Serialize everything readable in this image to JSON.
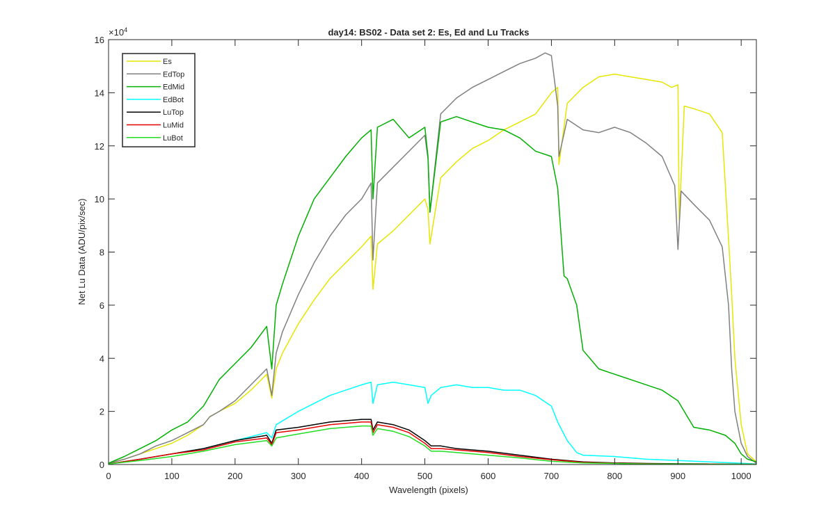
{
  "chart_data": {
    "type": "line",
    "title": "day14: BS02 - Data set 2: Es, Ed and Lu Tracks",
    "xlabel": "Wavelength (pixels)",
    "ylabel": "Net Lu Data (ADU/pix/sec)",
    "y_exponent_label": "×10",
    "y_exponent_power": "4",
    "xlim": [
      0,
      1024
    ],
    "ylim": [
      0,
      16
    ],
    "y_scale_note": "values in units of 1e4",
    "xticks": [
      0,
      100,
      200,
      300,
      400,
      500,
      600,
      700,
      800,
      900,
      1000
    ],
    "xtick_labels": [
      "0",
      "100",
      "200",
      "300",
      "400",
      "500",
      "600",
      "700",
      "800",
      "900",
      "1000"
    ],
    "yticks": [
      0,
      2,
      4,
      6,
      8,
      10,
      12,
      14,
      16
    ],
    "ytick_labels": [
      "0",
      "2",
      "4",
      "6",
      "8",
      "10",
      "12",
      "14",
      "16"
    ],
    "grid": false,
    "legend_position": "top-left",
    "series": [
      {
        "name": "Es",
        "color": "#e6e600",
        "x": [
          0,
          25,
          50,
          75,
          100,
          125,
          150,
          160,
          175,
          200,
          225,
          250,
          258,
          265,
          275,
          300,
          325,
          350,
          375,
          400,
          415,
          418,
          425,
          450,
          475,
          500,
          505,
          508,
          525,
          550,
          575,
          600,
          625,
          650,
          675,
          700,
          710,
          712,
          725,
          750,
          775,
          800,
          825,
          850,
          875,
          890,
          900,
          902,
          910,
          925,
          950,
          970,
          980,
          985,
          990,
          1000,
          1010,
          1024
        ],
        "y": [
          0.05,
          0.2,
          0.4,
          0.6,
          0.8,
          1.1,
          1.5,
          1.8,
          2.0,
          2.3,
          2.8,
          3.4,
          2.5,
          3.6,
          4.2,
          5.3,
          6.2,
          7.0,
          7.6,
          8.2,
          8.6,
          6.6,
          8.3,
          8.8,
          9.4,
          10.0,
          9.6,
          8.3,
          10.8,
          11.4,
          11.9,
          12.2,
          12.6,
          12.9,
          13.2,
          14.0,
          14.2,
          11.3,
          13.6,
          14.2,
          14.6,
          14.7,
          14.6,
          14.5,
          14.4,
          14.2,
          14.3,
          9.2,
          13.5,
          13.4,
          13.2,
          12.5,
          8.5,
          6.4,
          4.0,
          1.5,
          0.4,
          0.1
        ]
      },
      {
        "name": "EdTop",
        "color": "#808080",
        "x": [
          0,
          25,
          50,
          75,
          100,
          125,
          150,
          160,
          175,
          200,
          225,
          250,
          258,
          265,
          275,
          300,
          325,
          350,
          375,
          400,
          415,
          418,
          425,
          450,
          475,
          500,
          505,
          508,
          525,
          550,
          575,
          600,
          625,
          650,
          675,
          690,
          700,
          710,
          712,
          725,
          750,
          775,
          800,
          825,
          850,
          875,
          895,
          900,
          905,
          925,
          950,
          970,
          980,
          985,
          990,
          1000,
          1010,
          1024
        ],
        "y": [
          0.05,
          0.2,
          0.4,
          0.7,
          0.9,
          1.2,
          1.5,
          1.8,
          2.0,
          2.4,
          3.0,
          3.6,
          2.6,
          4.2,
          5.0,
          6.4,
          7.6,
          8.6,
          9.4,
          10.0,
          10.6,
          7.7,
          10.6,
          11.2,
          11.8,
          12.4,
          11.5,
          9.5,
          13.2,
          13.8,
          14.2,
          14.5,
          14.8,
          15.1,
          15.3,
          15.5,
          15.4,
          13.5,
          11.6,
          13.0,
          12.6,
          12.5,
          12.7,
          12.5,
          12.1,
          11.6,
          10.5,
          8.1,
          10.3,
          9.8,
          9.2,
          8.2,
          6.0,
          3.6,
          2.0,
          0.8,
          0.3,
          0.05
        ]
      },
      {
        "name": "EdMid",
        "color": "#00b000",
        "x": [
          0,
          25,
          50,
          75,
          100,
          125,
          150,
          160,
          175,
          200,
          225,
          250,
          258,
          265,
          275,
          300,
          325,
          350,
          375,
          400,
          415,
          418,
          425,
          450,
          475,
          500,
          505,
          508,
          525,
          550,
          575,
          600,
          625,
          650,
          675,
          700,
          710,
          720,
          725,
          740,
          750,
          775,
          800,
          825,
          850,
          875,
          900,
          925,
          950,
          975,
          990,
          1000,
          1010,
          1024
        ],
        "y": [
          0.05,
          0.3,
          0.6,
          0.9,
          1.3,
          1.6,
          2.2,
          2.6,
          3.2,
          3.8,
          4.4,
          5.2,
          3.6,
          6.0,
          6.8,
          8.6,
          10.0,
          10.8,
          11.6,
          12.3,
          12.6,
          10.0,
          12.7,
          13.0,
          12.3,
          12.7,
          11.6,
          9.5,
          12.9,
          13.1,
          12.9,
          12.7,
          12.6,
          12.3,
          11.8,
          11.6,
          10.4,
          7.1,
          7.0,
          6.0,
          4.3,
          3.6,
          3.4,
          3.2,
          3.0,
          2.8,
          2.4,
          1.4,
          1.3,
          1.1,
          0.8,
          0.4,
          0.2,
          0.1
        ]
      },
      {
        "name": "EdBot",
        "color": "#00ffff",
        "x": [
          0,
          50,
          100,
          150,
          200,
          250,
          258,
          265,
          300,
          350,
          400,
          415,
          418,
          425,
          450,
          475,
          500,
          505,
          510,
          525,
          550,
          575,
          600,
          625,
          650,
          675,
          700,
          710,
          725,
          740,
          750,
          800,
          850,
          900,
          950,
          1000,
          1024
        ],
        "y": [
          0.02,
          0.2,
          0.4,
          0.6,
          0.9,
          1.2,
          1.0,
          1.5,
          2.0,
          2.6,
          3.0,
          3.1,
          2.3,
          3.0,
          3.1,
          3.0,
          2.9,
          2.3,
          2.6,
          2.9,
          3.0,
          2.9,
          2.9,
          2.8,
          2.8,
          2.6,
          2.2,
          1.6,
          0.9,
          0.45,
          0.35,
          0.3,
          0.2,
          0.15,
          0.1,
          0.05,
          0.02
        ]
      },
      {
        "name": "LuTop",
        "color": "#000000",
        "x": [
          0,
          50,
          100,
          150,
          200,
          250,
          258,
          265,
          300,
          350,
          400,
          415,
          418,
          425,
          450,
          475,
          500,
          510,
          525,
          550,
          600,
          650,
          700,
          750,
          800,
          850,
          900,
          950,
          1000,
          1024
        ],
        "y": [
          0.02,
          0.2,
          0.4,
          0.6,
          0.9,
          1.1,
          0.8,
          1.3,
          1.4,
          1.6,
          1.7,
          1.7,
          1.3,
          1.6,
          1.5,
          1.3,
          0.9,
          0.7,
          0.7,
          0.6,
          0.5,
          0.35,
          0.2,
          0.1,
          0.06,
          0.04,
          0.03,
          0.02,
          0.01,
          0.01
        ]
      },
      {
        "name": "LuMid",
        "color": "#e60000",
        "x": [
          0,
          50,
          100,
          150,
          200,
          250,
          258,
          265,
          300,
          350,
          400,
          415,
          418,
          425,
          450,
          475,
          500,
          510,
          525,
          550,
          600,
          650,
          700,
          750,
          800,
          850,
          900,
          950,
          1000,
          1024
        ],
        "y": [
          0.02,
          0.2,
          0.4,
          0.55,
          0.85,
          1.0,
          0.75,
          1.2,
          1.3,
          1.5,
          1.6,
          1.6,
          1.2,
          1.5,
          1.4,
          1.2,
          0.8,
          0.6,
          0.6,
          0.55,
          0.45,
          0.3,
          0.18,
          0.08,
          0.05,
          0.03,
          0.02,
          0.02,
          0.01,
          0.01
        ]
      },
      {
        "name": "LuBot",
        "color": "#22dd22",
        "x": [
          0,
          50,
          100,
          150,
          200,
          250,
          258,
          265,
          300,
          350,
          400,
          415,
          418,
          425,
          450,
          475,
          500,
          510,
          525,
          550,
          600,
          650,
          700,
          750,
          800,
          850,
          900,
          950,
          1000,
          1024
        ],
        "y": [
          0.02,
          0.15,
          0.3,
          0.5,
          0.75,
          0.9,
          0.7,
          1.0,
          1.15,
          1.35,
          1.45,
          1.45,
          1.1,
          1.35,
          1.25,
          1.05,
          0.7,
          0.5,
          0.5,
          0.45,
          0.35,
          0.25,
          0.12,
          0.06,
          0.04,
          0.02,
          0.02,
          0.01,
          0.01,
          0.01
        ]
      }
    ]
  }
}
